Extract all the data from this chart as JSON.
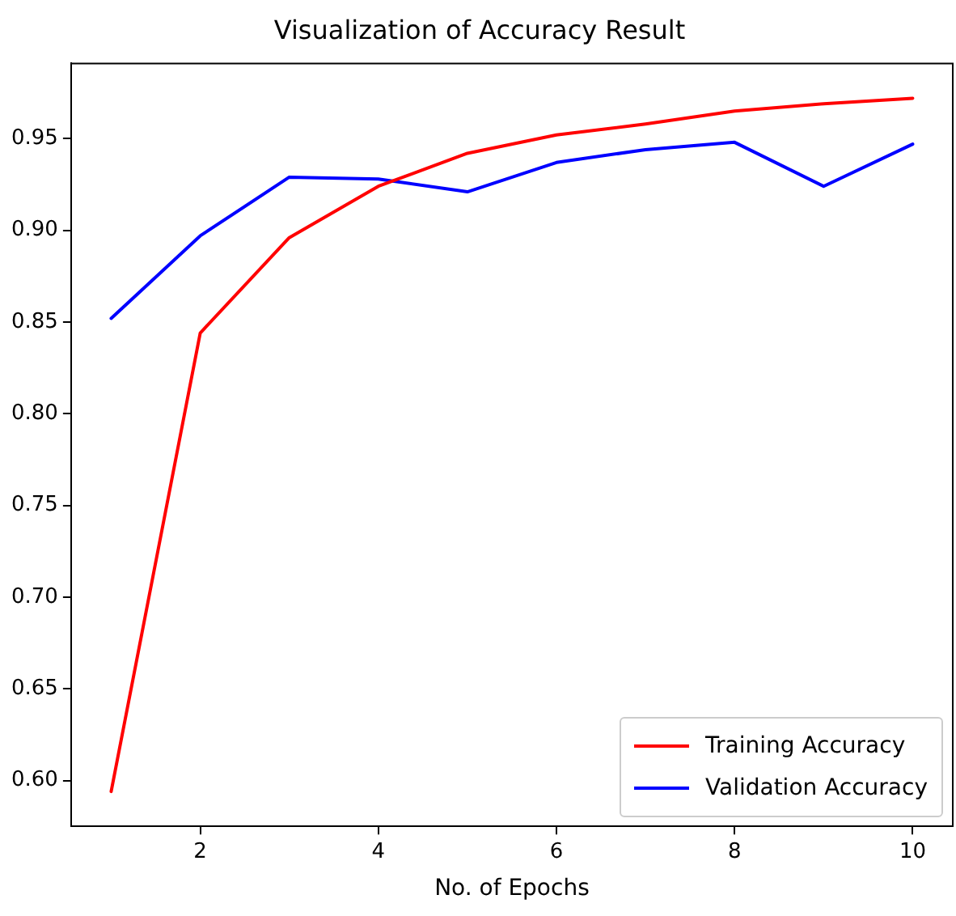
{
  "chart_data": {
    "type": "line",
    "title": "Visualization of Accuracy Result",
    "xlabel": "No. of Epochs",
    "x": [
      1,
      2,
      3,
      4,
      5,
      6,
      7,
      8,
      9,
      10
    ],
    "series": [
      {
        "name": "Training Accuracy",
        "color": "#ff0000",
        "values": [
          0.594,
          0.844,
          0.896,
          0.924,
          0.942,
          0.952,
          0.958,
          0.965,
          0.969,
          0.972
        ]
      },
      {
        "name": "Validation Accuracy",
        "color": "#0000ff",
        "values": [
          0.852,
          0.897,
          0.929,
          0.928,
          0.921,
          0.937,
          0.944,
          0.948,
          0.924,
          0.947
        ]
      }
    ],
    "xlim": [
      0.55,
      10.45
    ],
    "xticks": [
      2,
      4,
      6,
      8,
      10
    ],
    "ylim": [
      0.575,
      0.991
    ],
    "yticks": [
      {
        "value": 0.6,
        "label": "0.60"
      },
      {
        "value": 0.65,
        "label": "0.65"
      },
      {
        "value": 0.7,
        "label": "0.70"
      },
      {
        "value": 0.75,
        "label": "0.75"
      },
      {
        "value": 0.8,
        "label": "0.80"
      },
      {
        "value": 0.85,
        "label": "0.85"
      },
      {
        "value": 0.9,
        "label": "0.90"
      },
      {
        "value": 0.95,
        "label": "0.95"
      }
    ],
    "grid": false,
    "legend": "bottom right",
    "marker": "none",
    "line_style": "solid"
  }
}
